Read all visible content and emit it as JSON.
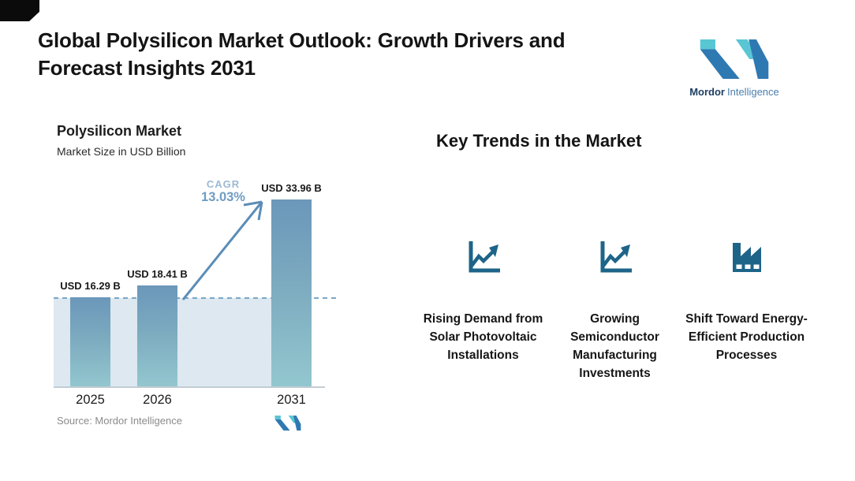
{
  "header": {
    "title": "Global Polysilicon Market Outlook: Growth Drivers and Forecast Insights 2031",
    "brand": {
      "name_bold": "Mordor",
      "name_regular": "Intelligence"
    }
  },
  "chart_data": {
    "type": "bar",
    "title": "Polysilicon Market",
    "subtitle": "Market Size in USD Billion",
    "ylabel": "Market Size (USD Billion)",
    "categories": [
      "2025",
      "2026",
      "2031"
    ],
    "values": [
      16.29,
      18.41,
      33.96
    ],
    "bar_labels": [
      "USD 16.29 B",
      "USD 18.41 B",
      "USD 33.96 B"
    ],
    "cagr": {
      "label": "CAGR",
      "value": "13.03%"
    },
    "reference_line": {
      "at_value": 16.29,
      "style": "dashed"
    },
    "source": "Source: Mordor Intelligence",
    "grid": false,
    "legend": "none",
    "colors": {
      "bar_top": "#6b97ba",
      "bar_bottom": "#93c7cf",
      "fill_region": "#dde8f1",
      "dashed_line": "#7aa7c7",
      "arrow": "#5b8db8",
      "cagr_text": "#6f9cc4"
    }
  },
  "trends": {
    "title": "Key Trends in the Market",
    "icon_color": "#1e6489",
    "items": [
      {
        "icon": "rising-chart-icon",
        "label": "Rising Demand from Solar Photovoltaic Installations"
      },
      {
        "icon": "rising-chart-icon",
        "label": "Growing Semiconductor Manufacturing Investments"
      },
      {
        "icon": "factory-icon",
        "label": "Shift Toward Energy-Efficient Production Processes"
      }
    ]
  },
  "logo_colors": {
    "teal": "#59c6d3",
    "blue": "#2f79b2"
  }
}
